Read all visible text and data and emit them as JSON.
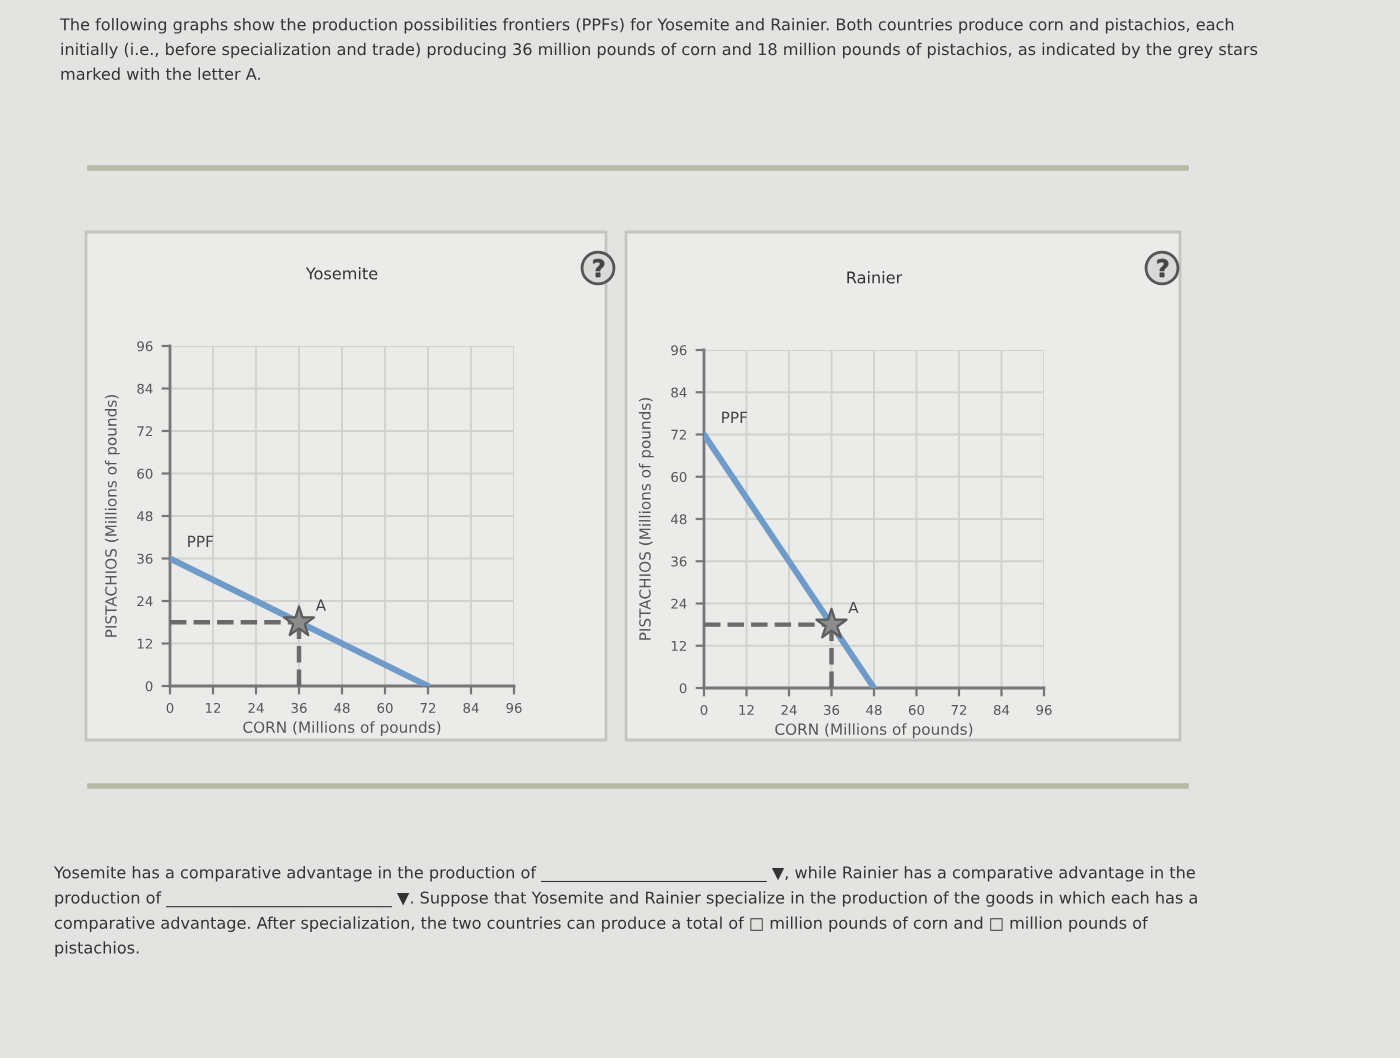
{
  "chart_data": [
    {
      "type": "line",
      "title": "Yosemite",
      "xlabel": "CORN (Millions of pounds)",
      "ylabel": "PISTACHIOS (Millions of pounds)",
      "xlim": [
        0,
        96
      ],
      "ylim": [
        0,
        96
      ],
      "xticks": [
        0,
        12,
        24,
        36,
        48,
        60,
        72,
        84,
        96
      ],
      "yticks": [
        0,
        12,
        24,
        36,
        48,
        60,
        72,
        84,
        96
      ],
      "grid": true,
      "series": [
        {
          "name": "PPF",
          "color": "#6f9bc9",
          "x": [
            0,
            72
          ],
          "values": [
            36,
            0
          ]
        },
        {
          "color": "#6a6a6a",
          "x": [
            0,
            36
          ],
          "values": [
            18,
            18
          ],
          "line_style": "dashed"
        },
        {
          "color": "#6a6a6a",
          "x": [
            36,
            36
          ],
          "values": [
            0,
            18
          ],
          "line_style": "dashed"
        },
        {
          "name": "A",
          "type": "scatter",
          "color": "#8c8c8c",
          "x": [
            36
          ],
          "values": [
            18
          ],
          "marker": "star"
        }
      ],
      "annotations": [
        "The following graphs show the production possibilities frontiers (PPFs) for Yosemite and Rainier. Both countries produce corn and pistachios, each\ninitially (i.e., before specialization and trade) producing 36 million pounds of corn and 18 million pounds of pistachios, as indicated by the grey stars\nmarked with the letter A."
      ]
    },
    {
      "type": "line",
      "title": "Rainier",
      "xlabel": "CORN (Millions of pounds)",
      "ylabel": "PISTACHIOS (Millions of pounds)",
      "xlim": [
        0,
        96
      ],
      "ylim": [
        0,
        96
      ],
      "xticks": [
        0,
        12,
        24,
        36,
        48,
        60,
        72,
        84,
        96
      ],
      "yticks": [
        0,
        12,
        24,
        36,
        48,
        60,
        72,
        84,
        96
      ],
      "grid": true,
      "series": [
        {
          "name": "PPF",
          "color": "#6f9bc9",
          "x": [
            0,
            48
          ],
          "values": [
            72,
            0
          ]
        },
        {
          "color": "#6a6a6a",
          "x": [
            0,
            36
          ],
          "values": [
            18,
            18
          ],
          "line_style": "dashed"
        },
        {
          "color": "#6a6a6a",
          "x": [
            36,
            36
          ],
          "values": [
            0,
            18
          ],
          "line_style": "dashed"
        },
        {
          "name": "A",
          "type": "scatter",
          "color": "#8c8c8c",
          "x": [
            36
          ],
          "values": [
            18
          ],
          "marker": "star"
        }
      ],
      "annotations": [
        "Yosemite has a comparative advantage in the production of ____________________________ ▼, while Rainier has a comparative advantage in the\nproduction of ____________________________ ▼. Suppose that Yosemite and Rainier specialize in the production of the goods in which each has a\ncomparative advantage. After specialization, the two countries can produce a total of □ million pounds of corn and □ million pounds of\npistachios."
      ]
    }
  ]
}
